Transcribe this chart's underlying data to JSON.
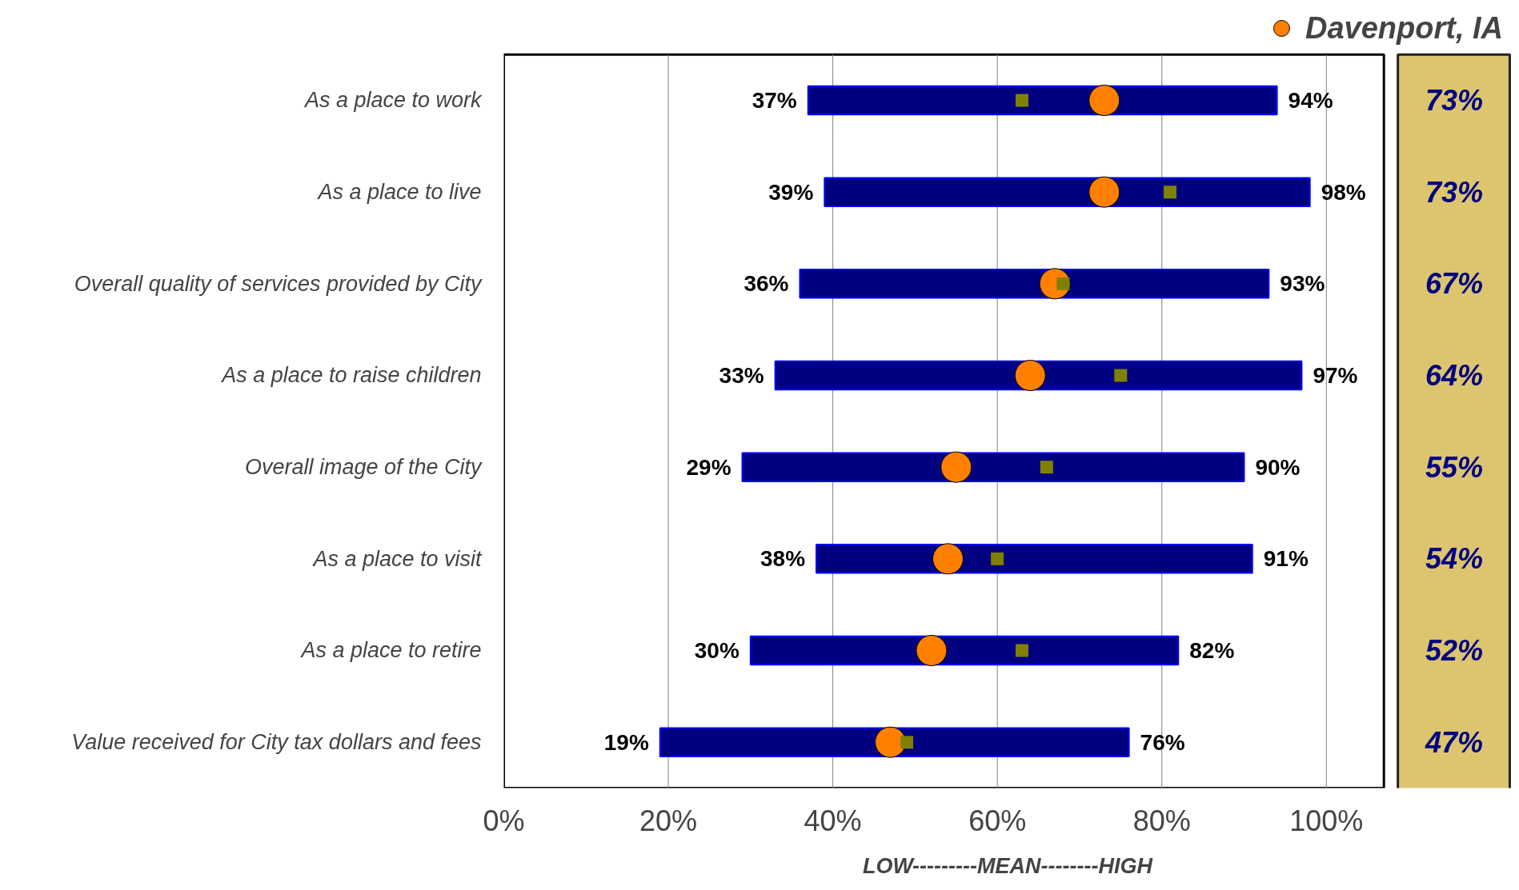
{
  "chart_data": {
    "type": "bar",
    "orientation": "horizontal",
    "xlabel": "LOW---------MEAN--------HIGH",
    "categories": [
      "As a place to work",
      "As a place to live",
      "Overall quality of services provided by City",
      "As a place to raise children",
      "Overall image of the City",
      "As a place to visit",
      "As a place to retire",
      "Value received for City tax dollars and fees"
    ],
    "xlim": [
      0,
      107
    ],
    "xticks": [
      {
        "value": 0,
        "label": "0%"
      },
      {
        "value": 20,
        "label": "20%"
      },
      {
        "value": 40,
        "label": "40%"
      },
      {
        "value": 60,
        "label": "60%"
      },
      {
        "value": 80,
        "label": "80%"
      },
      {
        "value": 100,
        "label": "100%"
      }
    ],
    "grid": "x",
    "legend": "top right",
    "series": [
      {
        "color": "#000080",
        "base": [
          37,
          39,
          36,
          33,
          29,
          38,
          30,
          19
        ],
        "values": [
          57,
          59,
          57,
          64,
          61,
          53,
          52,
          57
        ]
      },
      {
        "type": "scatter",
        "marker": "circle",
        "name": "Davenport, IA",
        "color": "#ff8000",
        "values": [
          73,
          73,
          67,
          64,
          55,
          54,
          52,
          47
        ],
        "value_labels": [
          "73%",
          "73%",
          "67%",
          "64%",
          "55%",
          "54%",
          "52%",
          "47%"
        ]
      },
      {
        "type": "scatter",
        "marker": "square",
        "color": "#808000",
        "values": [
          63,
          81,
          68,
          75,
          66,
          60,
          63,
          49
        ]
      }
    ],
    "annotations": [
      {
        "text": "37%",
        "x": 37,
        "y": "As a place to work"
      },
      {
        "text": "94%",
        "x": 94,
        "y": "As a place to work"
      },
      {
        "text": "39%",
        "x": 39,
        "y": "As a place to live"
      },
      {
        "text": "98%",
        "x": 98,
        "y": "As a place to live"
      },
      {
        "text": "36%",
        "x": 36,
        "y": "Overall quality of services provided by City"
      },
      {
        "text": "93%",
        "x": 93,
        "y": "Overall quality of services provided by City"
      },
      {
        "text": "33%",
        "x": 33,
        "y": "As a place to raise children"
      },
      {
        "text": "97%",
        "x": 97,
        "y": "As a place to raise children"
      },
      {
        "text": "29%",
        "x": 29,
        "y": "Overall image of the City"
      },
      {
        "text": "90%",
        "x": 90,
        "y": "Overall image of the City"
      },
      {
        "text": "38%",
        "x": 38,
        "y": "As a place to visit"
      },
      {
        "text": "91%",
        "x": 91,
        "y": "As a place to visit"
      },
      {
        "text": "30%",
        "x": 30,
        "y": "As a place to retire"
      },
      {
        "text": "82%",
        "x": 82,
        "y": "As a place to retire"
      },
      {
        "text": "19%",
        "x": 19,
        "y": "Value received for City tax dollars and fees"
      },
      {
        "text": "76%",
        "x": 76,
        "y": "Value received for City tax dollars and fees"
      }
    ]
  }
}
